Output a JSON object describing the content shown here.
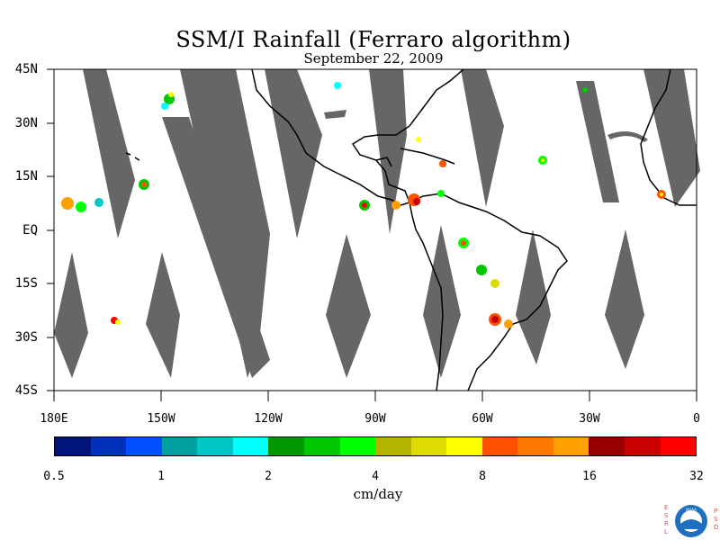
{
  "title": "SSM/I Rainfall (Ferraro algorithm)",
  "subtitle": "September 22, 2009",
  "lat_labels": [
    "45N",
    "30N",
    "15N",
    "EQ",
    "15S",
    "30S",
    "45S"
  ],
  "lon_labels": [
    "180E",
    "150W",
    "120W",
    "90W",
    "60W",
    "30W",
    "0"
  ],
  "colorbar": {
    "colors": [
      "#00147a",
      "#0032b9",
      "#0050ff",
      "#00a0a0",
      "#00c8c8",
      "#00ffff",
      "#009600",
      "#00c800",
      "#00ff00",
      "#b4b400",
      "#dcdc00",
      "#ffff00",
      "#ff5000",
      "#ff7800",
      "#ffa000",
      "#960000",
      "#c80000",
      "#ff0000"
    ],
    "tick_labels": [
      "0.5",
      "1",
      "2",
      "4",
      "8",
      "16",
      "32"
    ],
    "units": "cm/day"
  },
  "map": {
    "extent": {
      "lon_min": -180,
      "lon_max": 0,
      "lat_min": -45,
      "lat_max": 45
    },
    "nodata_color": "#666666",
    "land_outline_color": "#000000"
  },
  "logo": {
    "left_letters": [
      "E",
      "S",
      "R",
      "L"
    ],
    "right_letters": [
      "P",
      "S",
      "D"
    ],
    "center_text": "NOAA",
    "color": "#e05050"
  }
}
